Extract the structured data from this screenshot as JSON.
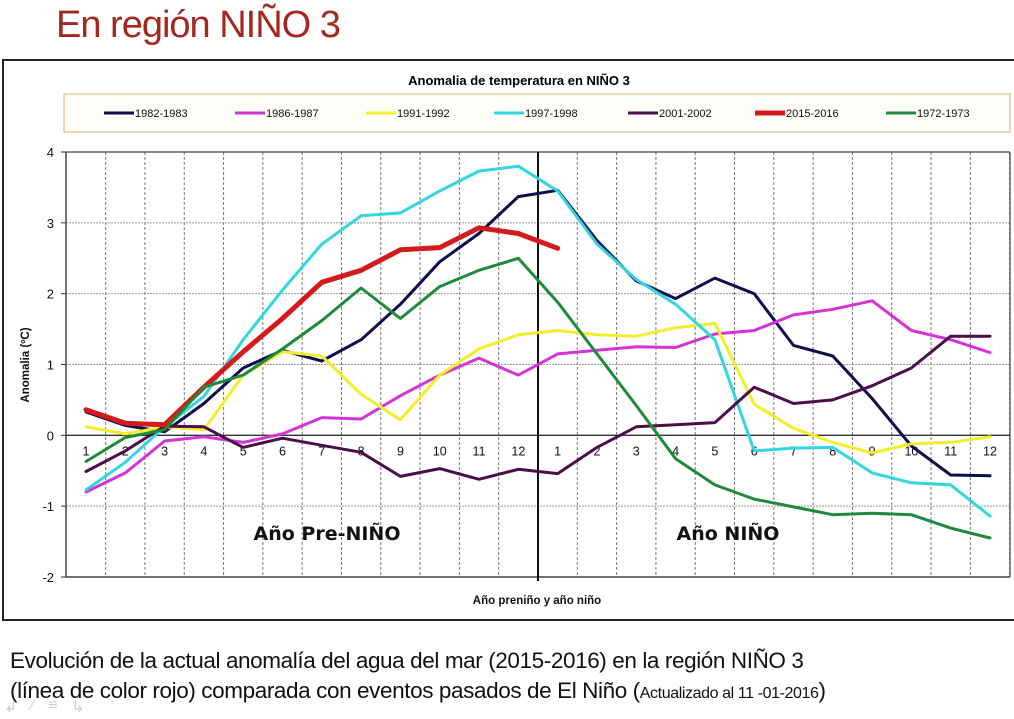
{
  "slide": {
    "title": "En región NIÑO 3",
    "caption_main_line1": "Evolución de la actual anomalía del agua del mar (2015-2016) en la región NIÑO 3",
    "caption_main_line2": "(línea de color rojo) comparada con eventos pasados de El Niño (",
    "caption_small": "Actualizado al 11 -01-2016",
    "caption_close": ")",
    "nav_icons": [
      "back-arrow-icon",
      "pen-icon",
      "menu-icon",
      "forward-arrow-icon"
    ]
  },
  "chart_data": {
    "type": "line",
    "title": "Anomalia de temperatura en NIÑO 3",
    "xlabel": "Año preniño y año niño",
    "ylabel": "Anomalia (ºC)",
    "ylim": [
      -2,
      4
    ],
    "yticks": [
      "-2",
      "-1",
      "0",
      "1",
      "2",
      "3",
      "4"
    ],
    "categories": [
      "1",
      "2",
      "3",
      "4",
      "5",
      "6",
      "7",
      "8",
      "9",
      "10",
      "11",
      "12",
      "1",
      "2",
      "3",
      "4",
      "5",
      "6",
      "7",
      "8",
      "9",
      "10",
      "11",
      "12"
    ],
    "grid": true,
    "legend_position": "top",
    "annotations": {
      "pre_nino": "Año Pre-NIÑO",
      "nino": "Año NIÑO"
    },
    "divider_after_index": 11.5,
    "series": [
      {
        "name": "1982-1983",
        "color": "#0d0d4f",
        "width": 3,
        "values": [
          0.33,
          0.14,
          0.05,
          0.45,
          0.95,
          1.2,
          1.05,
          1.35,
          1.85,
          2.45,
          2.85,
          3.37,
          3.46,
          2.75,
          2.18,
          1.93,
          2.22,
          2.0,
          1.27,
          1.12,
          0.52,
          -0.15,
          -0.56,
          -0.57
        ]
      },
      {
        "name": "1986-1987",
        "color": "#d633d6",
        "width": 3,
        "values": [
          -0.8,
          -0.53,
          -0.08,
          -0.02,
          -0.1,
          0.02,
          0.25,
          0.23,
          0.56,
          0.85,
          1.09,
          0.85,
          1.15,
          1.2,
          1.25,
          1.24,
          1.43,
          1.48,
          1.7,
          1.78,
          1.9,
          1.48,
          1.35,
          1.17
        ]
      },
      {
        "name": "1991-1992",
        "color": "#f2ee2c",
        "width": 3,
        "values": [
          0.12,
          0.02,
          0.12,
          0.08,
          0.85,
          1.18,
          1.12,
          0.58,
          0.22,
          0.85,
          1.22,
          1.42,
          1.48,
          1.42,
          1.4,
          1.52,
          1.58,
          0.44,
          0.1,
          -0.1,
          -0.25,
          -0.12,
          -0.1,
          -0.02
        ]
      },
      {
        "name": "1997-1998",
        "color": "#33d6e0",
        "width": 3,
        "values": [
          -0.77,
          -0.38,
          0.12,
          0.55,
          1.35,
          2.05,
          2.7,
          3.1,
          3.14,
          3.45,
          3.73,
          3.8,
          3.45,
          2.7,
          2.2,
          1.85,
          1.35,
          -0.22,
          -0.18,
          -0.17,
          -0.53,
          -0.67,
          -0.7,
          -1.14
        ]
      },
      {
        "name": "2001-2002",
        "color": "#4a0f4a",
        "width": 3,
        "values": [
          -0.51,
          -0.22,
          0.13,
          0.12,
          -0.17,
          -0.04,
          -0.14,
          -0.24,
          -0.58,
          -0.47,
          -0.62,
          -0.48,
          -0.54,
          -0.17,
          0.12,
          0.15,
          0.18,
          0.68,
          0.45,
          0.5,
          0.7,
          0.95,
          1.4,
          1.4
        ]
      },
      {
        "name": "2015-2016",
        "color": "#d41a1a",
        "width": 5,
        "values": [
          0.36,
          0.17,
          0.15,
          0.68,
          1.18,
          1.65,
          2.16,
          2.33,
          2.62,
          2.65,
          2.93,
          2.85,
          2.64,
          null,
          null,
          null,
          null,
          null,
          null,
          null,
          null,
          null,
          null,
          null
        ]
      },
      {
        "name": "1972-1973",
        "color": "#1f8a3a",
        "width": 3,
        "values": [
          -0.37,
          -0.03,
          0.08,
          0.68,
          0.85,
          1.22,
          1.62,
          2.08,
          1.65,
          2.1,
          2.33,
          2.5,
          1.88,
          1.15,
          0.42,
          -0.33,
          -0.7,
          -0.9,
          -1.01,
          -1.12,
          -1.1,
          -1.12,
          -1.31,
          -1.45
        ]
      }
    ]
  }
}
